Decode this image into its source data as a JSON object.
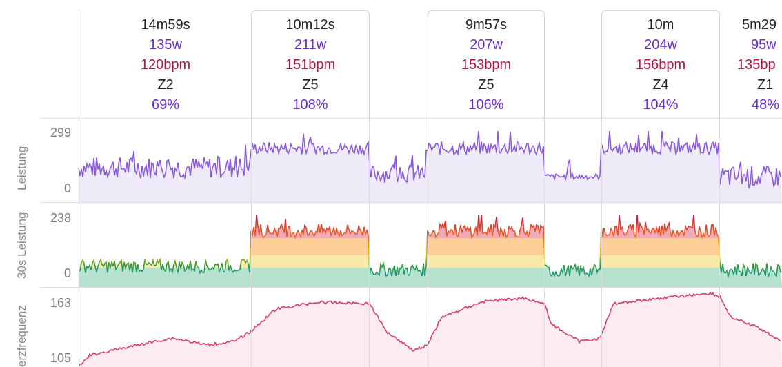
{
  "intervals": [
    {
      "duration": "14m59s",
      "watts": "135w",
      "bpm": "120bpm",
      "zone": "Z2",
      "pct": "69%"
    },
    {
      "duration": "10m12s",
      "watts": "211w",
      "bpm": "151bpm",
      "zone": "Z5",
      "pct": "108%"
    },
    {
      "duration": "9m57s",
      "watts": "207w",
      "bpm": "153bpm",
      "zone": "Z5",
      "pct": "106%"
    },
    {
      "duration": "10m",
      "watts": "204w",
      "bpm": "156bpm",
      "zone": "Z4",
      "pct": "104%"
    },
    {
      "duration": "5m29",
      "watts": "95w",
      "bpm": "135bp",
      "zone": "Z1",
      "pct": "48%"
    }
  ],
  "charts": {
    "power": {
      "label": "Leistung",
      "max": "299",
      "min": "0",
      "color": "#8a5ad8",
      "fill": "#efeaf8"
    },
    "power30": {
      "label": "30s Leistung",
      "max": "238",
      "min": "0"
    },
    "hr": {
      "label": "erzfrequenz",
      "max": "163",
      "min": "105",
      "color": "#d83a6e",
      "fill": "#fcebf0"
    }
  }
}
